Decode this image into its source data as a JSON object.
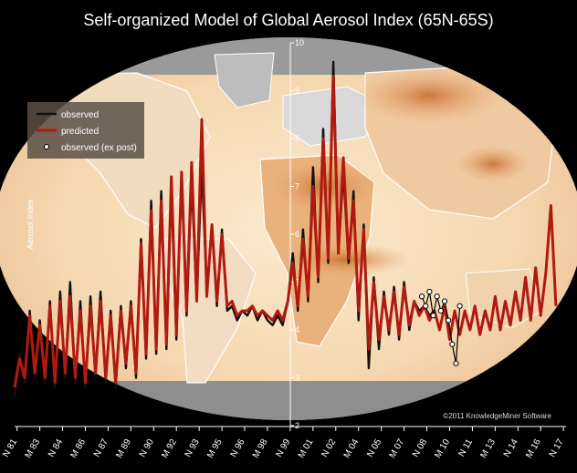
{
  "chart_data": {
    "type": "line",
    "title": "Self-organized Model of Global Aerosol Index (65N-65S)",
    "ylabel": "Aerosol Index",
    "xlabel": "",
    "ylim": [
      2,
      10
    ],
    "y_ticks": [
      "2",
      "3",
      "4",
      "5",
      "6",
      "7",
      "8",
      "9",
      "10"
    ],
    "x_tick_labels": [
      "N 81",
      "M 83",
      "N 84",
      "M 86",
      "N 87",
      "M 89",
      "N 90",
      "M 92",
      "N 93",
      "M 95",
      "N 96",
      "M 98",
      "N 99",
      "M 01",
      "N 02",
      "M 04",
      "N 05",
      "M 07",
      "N 08",
      "M 10",
      "N 11",
      "M 13",
      "N 14",
      "M 16",
      "N 17"
    ],
    "x_ticks": [
      1981.83,
      1983.33,
      1984.83,
      1986.33,
      1987.83,
      1989.33,
      1990.83,
      1992.33,
      1993.83,
      1995.33,
      1996.83,
      1998.33,
      1999.83,
      2001.33,
      2002.83,
      2004.33,
      2005.83,
      2007.33,
      2008.83,
      2010.33,
      2011.83,
      2013.33,
      2014.83,
      2016.33,
      2017.83
    ],
    "xlim": [
      1981.67,
      2018.0
    ],
    "legend": {
      "position": "top-left",
      "entries": [
        "observed",
        "predicted",
        "observed (ex post)"
      ]
    },
    "credit": "©2011 KnowledgeMiner Software",
    "grid": false,
    "colors": {
      "observed": "#111111",
      "predicted": "#b01a10",
      "ex_post": "#ffffff"
    },
    "series": [
      {
        "name": "observed",
        "x": [
          1981.67,
          1982.0,
          1982.33,
          1982.67,
          1983.0,
          1983.33,
          1983.67,
          1984.0,
          1984.33,
          1984.67,
          1985.0,
          1985.33,
          1985.67,
          1986.0,
          1986.33,
          1986.67,
          1987.0,
          1987.33,
          1987.67,
          1988.0,
          1988.33,
          1988.67,
          1989.0,
          1989.33,
          1989.67,
          1990.0,
          1990.33,
          1990.67,
          1991.0,
          1991.33,
          1991.67,
          1992.0,
          1992.33,
          1992.67,
          1993.0,
          1993.33,
          1993.67,
          1994.0,
          1994.33,
          1994.67,
          1995.0,
          1995.33,
          1995.67,
          1996.0,
          1996.33,
          1996.67,
          1997.0,
          1997.33,
          1997.67,
          1998.0,
          1998.33,
          1998.67,
          1999.0,
          1999.33,
          1999.67,
          2000.0,
          2000.33,
          2000.67,
          2001.0,
          2001.33,
          2001.67,
          2002.0,
          2002.33,
          2002.67,
          2003.0,
          2003.33,
          2003.67,
          2004.0,
          2004.33,
          2004.67,
          2005.0,
          2005.33,
          2005.67,
          2006.0,
          2006.33,
          2006.67,
          2007.0,
          2007.33,
          2007.67,
          2008.0,
          2008.33,
          2008.67,
          2009.0,
          2009.33
        ],
        "values": [
          2.6,
          3.5,
          2.9,
          4.4,
          3.0,
          4.2,
          2.9,
          4.6,
          2.8,
          4.8,
          3.0,
          5.0,
          2.9,
          4.6,
          2.8,
          4.7,
          3.0,
          4.8,
          2.9,
          4.4,
          2.8,
          4.5,
          3.2,
          4.6,
          3.0,
          5.9,
          3.4,
          6.7,
          3.5,
          6.9,
          3.6,
          6.9,
          3.8,
          7.2,
          4.3,
          7.1,
          4.6,
          7.4,
          4.8,
          6.2,
          4.5,
          6.1,
          4.4,
          4.5,
          4.2,
          4.4,
          4.3,
          4.5,
          4.2,
          4.4,
          4.2,
          4.1,
          4.3,
          4.1,
          4.6,
          5.6,
          4.4,
          6.1,
          4.6,
          7.4,
          5.0,
          8.2,
          5.4,
          9.6,
          5.6,
          7.3,
          5.4,
          6.9,
          4.2,
          6.2,
          3.2,
          5.1,
          3.6,
          4.8,
          3.9,
          4.9,
          3.8,
          5.0,
          4.0,
          4.6,
          4.4,
          4.5,
          4.3,
          4.4
        ]
      },
      {
        "name": "predicted",
        "x": [
          1981.67,
          1982.0,
          1982.33,
          1982.67,
          1983.0,
          1983.33,
          1983.67,
          1984.0,
          1984.33,
          1984.67,
          1985.0,
          1985.33,
          1985.67,
          1986.0,
          1986.33,
          1986.67,
          1987.0,
          1987.33,
          1987.67,
          1988.0,
          1988.33,
          1988.67,
          1989.0,
          1989.33,
          1989.67,
          1990.0,
          1990.33,
          1990.67,
          1991.0,
          1991.33,
          1991.67,
          1992.0,
          1992.33,
          1992.67,
          1993.0,
          1993.33,
          1993.67,
          1994.0,
          1994.33,
          1994.67,
          1995.0,
          1995.33,
          1995.67,
          1996.0,
          1996.33,
          1996.67,
          1997.0,
          1997.33,
          1997.67,
          1998.0,
          1998.33,
          1998.67,
          1999.0,
          1999.33,
          1999.67,
          2000.0,
          2000.33,
          2000.67,
          2001.0,
          2001.33,
          2001.67,
          2002.0,
          2002.33,
          2002.67,
          2003.0,
          2003.33,
          2003.67,
          2004.0,
          2004.33,
          2004.67,
          2005.0,
          2005.33,
          2005.67,
          2006.0,
          2006.33,
          2006.67,
          2007.0,
          2007.33,
          2007.67,
          2008.0,
          2008.33,
          2008.67,
          2009.0,
          2009.33,
          2009.67,
          2010.0,
          2010.33,
          2010.67,
          2011.0,
          2011.33,
          2011.67,
          2012.0,
          2012.33,
          2012.67,
          2013.0,
          2013.33,
          2013.67,
          2014.0,
          2014.33,
          2014.67,
          2015.0,
          2015.33,
          2015.67,
          2016.0,
          2016.33,
          2016.67,
          2017.0,
          2017.33
        ],
        "values": [
          2.8,
          3.4,
          3.0,
          4.3,
          3.1,
          4.1,
          3.0,
          4.5,
          2.9,
          4.6,
          3.1,
          4.7,
          3.0,
          4.4,
          2.9,
          4.5,
          3.1,
          4.6,
          3.0,
          4.3,
          2.9,
          4.4,
          3.3,
          4.5,
          3.1,
          5.8,
          3.5,
          6.5,
          3.6,
          6.7,
          3.7,
          7.2,
          3.9,
          7.3,
          4.4,
          7.5,
          4.6,
          8.4,
          4.7,
          6.2,
          4.6,
          6.0,
          4.5,
          4.6,
          4.3,
          4.4,
          4.4,
          4.5,
          4.3,
          4.4,
          4.3,
          4.2,
          4.4,
          4.2,
          4.6,
          5.4,
          4.5,
          5.9,
          4.7,
          7.0,
          5.1,
          8.0,
          5.5,
          9.3,
          5.6,
          7.6,
          5.5,
          6.7,
          4.4,
          6.1,
          3.6,
          5.0,
          3.8,
          4.7,
          4.0,
          4.8,
          3.9,
          4.9,
          4.1,
          4.6,
          4.3,
          4.5,
          4.2,
          4.4,
          4.0,
          4.5,
          3.8,
          4.4,
          3.9,
          4.4,
          4.0,
          4.5,
          3.9,
          4.4,
          4.0,
          4.7,
          4.0,
          4.6,
          4.1,
          4.8,
          4.2,
          5.1,
          4.2,
          5.3,
          4.3,
          5.2,
          6.6,
          4.5
        ]
      },
      {
        "name": "observed (ex post)",
        "x": [
          2008.5,
          2008.75,
          2009.0,
          2009.25,
          2009.5,
          2009.75,
          2010.0,
          2010.25,
          2010.5,
          2010.75,
          2011.0
        ],
        "values": [
          4.7,
          4.5,
          4.8,
          4.3,
          4.7,
          4.4,
          4.6,
          4.2,
          3.7,
          3.3,
          4.5
        ]
      }
    ]
  }
}
